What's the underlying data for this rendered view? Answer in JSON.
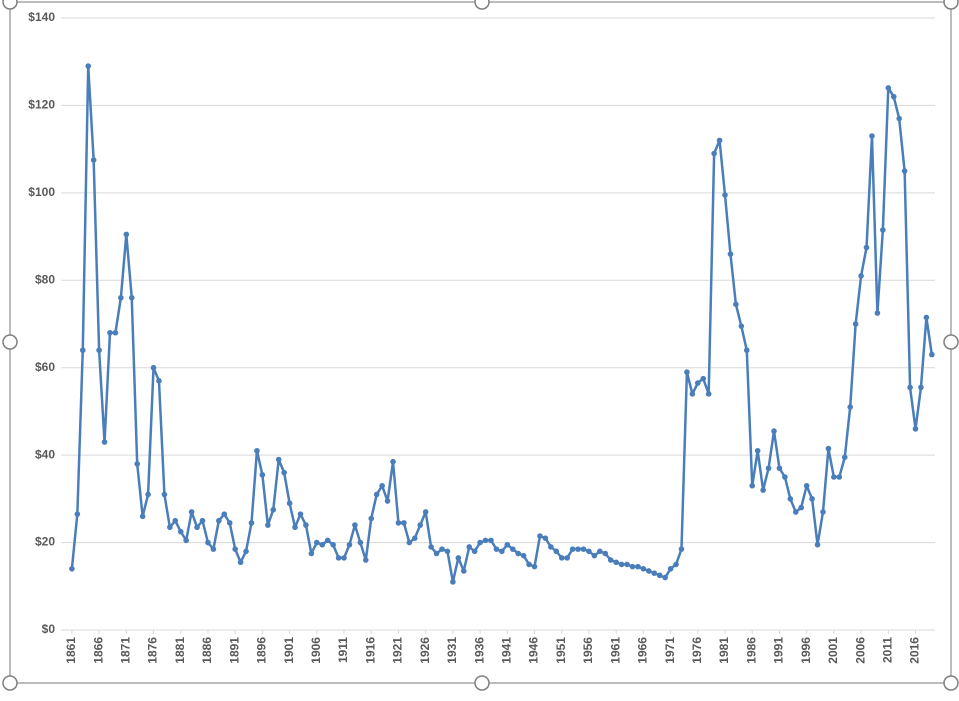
{
  "chart_data": {
    "type": "line",
    "x": [
      1861,
      1862,
      1863,
      1864,
      1865,
      1866,
      1867,
      1868,
      1869,
      1870,
      1871,
      1872,
      1873,
      1874,
      1875,
      1876,
      1877,
      1878,
      1879,
      1880,
      1881,
      1882,
      1883,
      1884,
      1885,
      1886,
      1887,
      1888,
      1889,
      1890,
      1891,
      1892,
      1893,
      1894,
      1895,
      1896,
      1897,
      1898,
      1899,
      1900,
      1901,
      1902,
      1903,
      1904,
      1905,
      1906,
      1907,
      1908,
      1909,
      1910,
      1911,
      1912,
      1913,
      1914,
      1915,
      1916,
      1917,
      1918,
      1919,
      1920,
      1921,
      1922,
      1923,
      1924,
      1925,
      1926,
      1927,
      1928,
      1929,
      1930,
      1931,
      1932,
      1933,
      1934,
      1935,
      1936,
      1937,
      1938,
      1939,
      1940,
      1941,
      1942,
      1943,
      1944,
      1945,
      1946,
      1947,
      1948,
      1949,
      1950,
      1951,
      1952,
      1953,
      1954,
      1955,
      1956,
      1957,
      1958,
      1959,
      1960,
      1961,
      1962,
      1963,
      1964,
      1965,
      1966,
      1967,
      1968,
      1969,
      1970,
      1971,
      1972,
      1973,
      1974,
      1975,
      1976,
      1977,
      1978,
      1979,
      1980,
      1981,
      1982,
      1983,
      1984,
      1985,
      1986,
      1987,
      1988,
      1989,
      1990,
      1991,
      1992,
      1993,
      1994,
      1995,
      1996,
      1997,
      1998,
      1999,
      2000,
      2001,
      2002,
      2003,
      2004,
      2005,
      2006,
      2007,
      2008,
      2009,
      2010,
      2011,
      2012,
      2013,
      2014,
      2015,
      2016,
      2017,
      2018,
      2019
    ],
    "series": [
      {
        "color": "#4a7ebb",
        "values": [
          14,
          26.5,
          64,
          129,
          107.5,
          64,
          43,
          68,
          68,
          76,
          90.5,
          76,
          38,
          26,
          31,
          60,
          57,
          31,
          23.5,
          25,
          22.5,
          20.5,
          27,
          23.5,
          25,
          20,
          18.5,
          25,
          26.5,
          24.5,
          18.5,
          15.5,
          18,
          24.5,
          41,
          35.5,
          24,
          27.5,
          39,
          36,
          29,
          23.5,
          26.5,
          24,
          17.5,
          20,
          19.5,
          20.5,
          19.5,
          16.5,
          16.5,
          19.5,
          24,
          20,
          16,
          25.5,
          31,
          33,
          29.5,
          38.5,
          24.5,
          24.5,
          20,
          21,
          24,
          27,
          19,
          17.5,
          18.5,
          18,
          11,
          16.5,
          13.5,
          19,
          18,
          20,
          20.5,
          20.5,
          18.5,
          18,
          19.5,
          18.5,
          17.5,
          17,
          15,
          14.5,
          21.5,
          21,
          19,
          18,
          16.5,
          16.5,
          18.5,
          18.5,
          18.5,
          18,
          17,
          18,
          17.5,
          16,
          15.5,
          15,
          15,
          14.5,
          14.5,
          14,
          13.5,
          13,
          12.5,
          12,
          14,
          15,
          18.5,
          59,
          54,
          56.5,
          57.5,
          54,
          109,
          112,
          99.5,
          86,
          74.5,
          69.5,
          64,
          33,
          41,
          32,
          37,
          45.5,
          37,
          35,
          30,
          27,
          28,
          33,
          30,
          19.5,
          27,
          41.5,
          35,
          35,
          39.5,
          51,
          70,
          81,
          87.5,
          113,
          72.5,
          91.5,
          124,
          122,
          117,
          105,
          55.5,
          46,
          55.5,
          71.5,
          63
        ]
      }
    ],
    "xlim": [
      1859,
      2020.5
    ],
    "xticks": [
      1861,
      1866,
      1871,
      1876,
      1881,
      1886,
      1891,
      1896,
      1901,
      1906,
      1911,
      1916,
      1921,
      1926,
      1931,
      1936,
      1941,
      1946,
      1951,
      1956,
      1961,
      1966,
      1971,
      1976,
      1981,
      1986,
      1991,
      1996,
      2001,
      2006,
      2011,
      2016
    ],
    "ylim": [
      0,
      140
    ],
    "yticks": [
      {
        "value": 0,
        "label": "$0"
      },
      {
        "value": 20,
        "label": "$20"
      },
      {
        "value": 40,
        "label": "$40"
      },
      {
        "value": 60,
        "label": "$60"
      },
      {
        "value": 80,
        "label": "$80"
      },
      {
        "value": 100,
        "label": "$100"
      },
      {
        "value": 120,
        "label": "$120"
      },
      {
        "value": 140,
        "label": "$140"
      }
    ],
    "grid": true
  }
}
